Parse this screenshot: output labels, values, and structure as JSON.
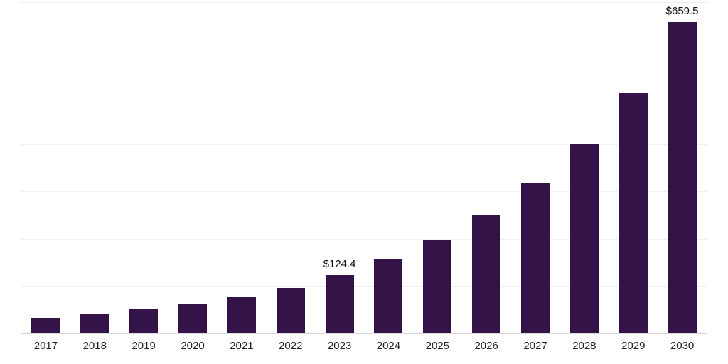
{
  "chart_data": {
    "type": "bar",
    "title": "",
    "xlabel": "",
    "ylabel": "",
    "categories": [
      "2017",
      "2018",
      "2019",
      "2020",
      "2021",
      "2022",
      "2023",
      "2024",
      "2025",
      "2026",
      "2027",
      "2028",
      "2029",
      "2030"
    ],
    "values": [
      35,
      44,
      53,
      64,
      78,
      98,
      124.4,
      157,
      199,
      252,
      318,
      403,
      510,
      659.5
    ],
    "data_labels": {
      "2023": "$124.4",
      "2030": "$659.5"
    },
    "ylim": [
      0,
      700
    ],
    "grid_step": 100,
    "grid": "horizontal",
    "legend_position": "none",
    "colors": {
      "bar": "#341348",
      "data_label": "#111111",
      "tick_label": "#222222",
      "gridline": "#efefef",
      "axis_line": "#d9d9d9"
    }
  }
}
